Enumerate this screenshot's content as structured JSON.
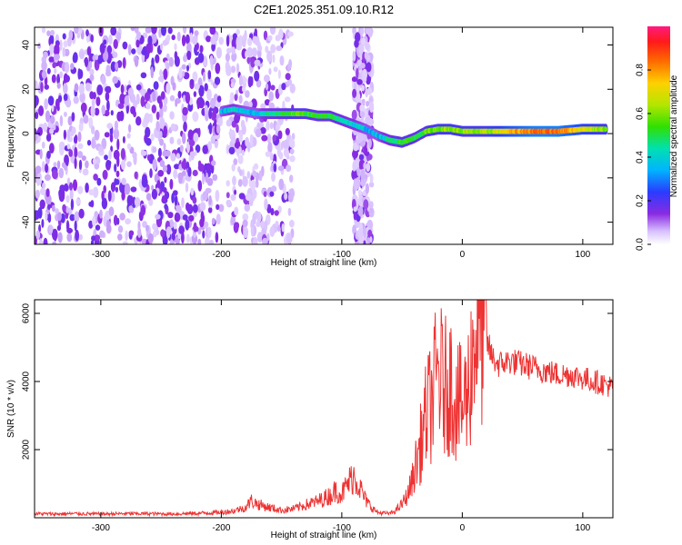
{
  "title": "C2E1.2025.351.09.10.R12",
  "colors": {
    "snr_line": "#ee3333",
    "frame": "#000000",
    "spectro_main": "#7b2cf0"
  },
  "chart_data": [
    {
      "type": "heatmap",
      "xlabel": "Height of straight line (km)",
      "ylabel": "Frequency (Hz)",
      "xlim": [
        -355,
        125
      ],
      "ylim": [
        -50,
        48
      ],
      "xticks": [
        -300,
        -200,
        -100,
        0,
        100
      ],
      "yticks": [
        -40,
        -20,
        0,
        20,
        40
      ],
      "colorbar": {
        "label": "Normalized spectral amplitude",
        "range": [
          0,
          1
        ],
        "ticks": [
          0.0,
          0.2,
          0.4,
          0.6,
          0.8
        ],
        "colormap": "rainbow (white -> violet -> blue -> cyan -> green -> yellow -> red -> magenta)"
      },
      "ridge": {
        "description": "main spectral ridge (frequency vs height)",
        "x": [
          -200,
          -190,
          -180,
          -170,
          -160,
          -150,
          -140,
          -130,
          -120,
          -110,
          -100,
          -90,
          -80,
          -70,
          -60,
          -50,
          -40,
          -30,
          -20,
          -10,
          0,
          20,
          40,
          60,
          80,
          100,
          120
        ],
        "y": [
          10,
          11,
          10,
          9,
          9,
          9,
          9,
          9,
          8,
          8,
          6,
          4,
          2,
          -1,
          -3,
          -4,
          -2,
          1,
          2,
          2,
          1,
          1,
          1,
          1,
          1,
          2,
          2
        ],
        "amplitude": [
          0.35,
          0.4,
          0.35,
          0.35,
          0.45,
          0.5,
          0.55,
          0.55,
          0.5,
          0.5,
          0.45,
          0.4,
          0.35,
          0.35,
          0.45,
          0.55,
          0.5,
          0.55,
          0.6,
          0.6,
          0.6,
          0.6,
          0.75,
          0.85,
          0.85,
          0.7,
          0.6
        ]
      },
      "noise_bands": [
        {
          "x_range": [
            -355,
            -200
          ],
          "density": "high"
        },
        {
          "x_range": [
            -195,
            -140
          ],
          "density": "medium"
        },
        {
          "x_range": [
            -90,
            -75
          ],
          "density": "medium"
        }
      ]
    },
    {
      "type": "line",
      "xlabel": "Height of straight line (km)",
      "ylabel": "SNR (10 * v/v)",
      "xlim": [
        -355,
        125
      ],
      "ylim": [
        0,
        6400
      ],
      "xticks": [
        -300,
        -200,
        -100,
        0,
        100
      ],
      "yticks": [
        2000,
        4000,
        6000
      ],
      "series": [
        {
          "x": [
            -355,
            -340,
            -320,
            -300,
            -280,
            -260,
            -240,
            -220,
            -200,
            -190,
            -180,
            -175,
            -170,
            -160,
            -150,
            -140,
            -130,
            -120,
            -110,
            -105,
            -100,
            -95,
            -90,
            -85,
            -80,
            -75,
            -70,
            -60,
            -55,
            -50,
            -45,
            -40,
            -35,
            -30,
            -25,
            -20,
            -15,
            -10,
            -5,
            0,
            5,
            10,
            15,
            20,
            25,
            30,
            40,
            50,
            60,
            70,
            80,
            90,
            100,
            110,
            120,
            125
          ],
          "y": [
            120,
            110,
            120,
            110,
            120,
            120,
            110,
            130,
            160,
            200,
            300,
            500,
            400,
            300,
            220,
            260,
            380,
            480,
            650,
            800,
            700,
            1000,
            1250,
            900,
            500,
            300,
            150,
            120,
            220,
            400,
            700,
            1300,
            2100,
            3000,
            3500,
            4300,
            3800,
            4000,
            3500,
            3200,
            3800,
            5300,
            5800,
            5200,
            4700,
            4500,
            4600,
            4500,
            4400,
            4300,
            4200,
            4200,
            4100,
            4000,
            3900,
            3800
          ]
        }
      ]
    }
  ]
}
